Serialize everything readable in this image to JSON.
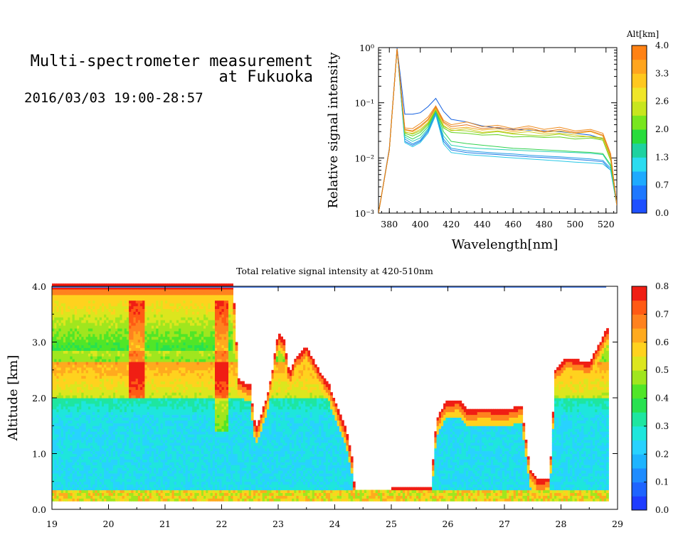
{
  "header": {
    "title_line1": "Multi-spectrometer measurement",
    "title_line2": "at Fukuoka",
    "date_range": "2016/03/03 19:00-28:57"
  },
  "chart_data": [
    {
      "type": "line",
      "xlabel": "Wavelength[nm]",
      "ylabel": "Relative signal intensity",
      "y_scale": "log",
      "xlim": [
        373,
        527
      ],
      "ylim": [
        0.001,
        1
      ],
      "x_ticks": [
        "380",
        "400",
        "420",
        "440",
        "460",
        "480",
        "500",
        "520"
      ],
      "y_ticks": [
        "10⁻³",
        "10⁻²",
        "10⁻¹",
        "10⁰"
      ],
      "x": [
        373,
        380,
        385,
        390,
        395,
        400,
        405,
        410,
        415,
        420,
        430,
        440,
        450,
        460,
        470,
        480,
        490,
        500,
        510,
        518,
        523,
        527
      ],
      "colorbar": {
        "title": "Alt[km]",
        "tick_labels": [
          "0.0",
          "0.7",
          "1.3",
          "2.0",
          "2.6",
          "3.3",
          "4.0"
        ],
        "colors": [
          "#1e50ff",
          "#1e78ff",
          "#1eaaff",
          "#2adcf0",
          "#1ed2a0",
          "#28dc3c",
          "#78e61e",
          "#c8e61e",
          "#f0e628",
          "#ffc81e",
          "#ffa51e",
          "#ff8214"
        ]
      },
      "series": [
        {
          "color": "#1460e0",
          "values": [
            0.001,
            0.015,
            1.0,
            0.062,
            0.062,
            0.066,
            0.085,
            0.12,
            0.07,
            0.05,
            0.045,
            0.038,
            0.035,
            0.033,
            0.032,
            0.031,
            0.03,
            0.028,
            0.026,
            0.022,
            0.01,
            0.0015
          ]
        },
        {
          "color": "#1e78e6",
          "values": [
            0.001,
            0.014,
            0.95,
            0.02,
            0.017,
            0.02,
            0.03,
            0.065,
            0.02,
            0.014,
            0.0125,
            0.012,
            0.0115,
            0.011,
            0.0105,
            0.0102,
            0.0099,
            0.0094,
            0.009,
            0.0085,
            0.006,
            0.0014
          ]
        },
        {
          "color": "#1e9be6",
          "values": [
            0.001,
            0.014,
            0.95,
            0.022,
            0.018,
            0.021,
            0.032,
            0.068,
            0.022,
            0.015,
            0.0135,
            0.0128,
            0.0122,
            0.0118,
            0.0112,
            0.0108,
            0.0105,
            0.01,
            0.0096,
            0.009,
            0.0065,
            0.0014
          ]
        },
        {
          "color": "#28c8e6",
          "values": [
            0.001,
            0.014,
            0.95,
            0.019,
            0.016,
            0.019,
            0.028,
            0.06,
            0.018,
            0.0125,
            0.0115,
            0.011,
            0.0105,
            0.01,
            0.0096,
            0.0092,
            0.0088,
            0.0084,
            0.0081,
            0.0078,
            0.006,
            0.0014
          ]
        },
        {
          "color": "#28d2b4",
          "values": [
            0.001,
            0.014,
            0.95,
            0.024,
            0.02,
            0.023,
            0.034,
            0.07,
            0.025,
            0.017,
            0.0155,
            0.0148,
            0.0143,
            0.0139,
            0.0135,
            0.0131,
            0.0128,
            0.0125,
            0.0121,
            0.0115,
            0.007,
            0.0014
          ]
        },
        {
          "color": "#32d250",
          "values": [
            0.001,
            0.014,
            0.95,
            0.026,
            0.022,
            0.026,
            0.037,
            0.072,
            0.03,
            0.02,
            0.0182,
            0.017,
            0.016,
            0.015,
            0.0145,
            0.014,
            0.0136,
            0.013,
            0.0126,
            0.012,
            0.0075,
            0.0014
          ]
        },
        {
          "color": "#64d21e",
          "values": [
            0.001,
            0.014,
            0.95,
            0.028,
            0.025,
            0.029,
            0.04,
            0.074,
            0.035,
            0.029,
            0.028,
            0.026,
            0.0265,
            0.024,
            0.0245,
            0.0235,
            0.024,
            0.022,
            0.023,
            0.021,
            0.009,
            0.0014
          ]
        },
        {
          "color": "#a0d21e",
          "values": [
            0.001,
            0.014,
            0.95,
            0.03,
            0.027,
            0.031,
            0.042,
            0.076,
            0.037,
            0.032,
            0.031,
            0.028,
            0.03,
            0.027,
            0.026,
            0.025,
            0.027,
            0.024,
            0.0245,
            0.023,
            0.01,
            0.0014
          ]
        },
        {
          "color": "#d2c81e",
          "values": [
            0.001,
            0.014,
            0.95,
            0.029,
            0.028,
            0.033,
            0.044,
            0.078,
            0.039,
            0.031,
            0.034,
            0.029,
            0.031,
            0.028,
            0.03,
            0.027,
            0.028,
            0.026,
            0.024,
            0.022,
            0.0095,
            0.0014
          ]
        },
        {
          "color": "#f0aa1e",
          "values": [
            0.001,
            0.014,
            0.95,
            0.032,
            0.03,
            0.036,
            0.048,
            0.082,
            0.043,
            0.034,
            0.036,
            0.032,
            0.034,
            0.03,
            0.033,
            0.029,
            0.031,
            0.028,
            0.03,
            0.025,
            0.011,
            0.0014
          ]
        },
        {
          "color": "#f08c1e",
          "values": [
            0.001,
            0.014,
            0.95,
            0.035,
            0.034,
            0.042,
            0.055,
            0.088,
            0.048,
            0.04,
            0.045,
            0.037,
            0.039,
            0.034,
            0.038,
            0.033,
            0.036,
            0.031,
            0.033,
            0.028,
            0.012,
            0.0014
          ]
        },
        {
          "color": "#e6781e",
          "values": [
            0.001,
            0.014,
            0.95,
            0.033,
            0.031,
            0.038,
            0.05,
            0.084,
            0.045,
            0.037,
            0.04,
            0.034,
            0.036,
            0.032,
            0.035,
            0.03,
            0.033,
            0.029,
            0.031,
            0.026,
            0.011,
            0.0014
          ]
        }
      ]
    },
    {
      "type": "heatmap",
      "title": "Total relative signal intensity at 420-510nm",
      "ylabel": "Altitude [km]",
      "xlim": [
        19,
        29
      ],
      "ylim": [
        0,
        4
      ],
      "x_ticks": [
        "19",
        "20",
        "21",
        "22",
        "23",
        "24",
        "25",
        "26",
        "27",
        "28",
        "29"
      ],
      "y_ticks": [
        "0.0",
        "1.0",
        "2.0",
        "3.0",
        "4.0"
      ],
      "colorbar": {
        "min": 0,
        "max": 0.8,
        "tick_labels": [
          "0.0",
          "0.1",
          "0.2",
          "0.3",
          "0.4",
          "0.5",
          "0.6",
          "0.7",
          "0.8"
        ],
        "colors": [
          "#1e3cff",
          "#1e64ff",
          "#1e8cff",
          "#1eb4ff",
          "#28d2ff",
          "#1ee6dc",
          "#1ee6a0",
          "#28e150",
          "#50e628",
          "#a0e61e",
          "#dce61e",
          "#ffd21e",
          "#ffaa1e",
          "#ff821e",
          "#ff5a14",
          "#f01e14"
        ]
      },
      "cloud_top_km": [
        [
          19.0,
          4.0
        ],
        [
          22.2,
          4.0
        ],
        [
          22.3,
          2.3
        ],
        [
          22.5,
          2.2
        ],
        [
          22.6,
          1.4
        ],
        [
          22.8,
          2.0
        ],
        [
          22.9,
          2.5
        ],
        [
          23.0,
          3.15
        ],
        [
          23.1,
          3.0
        ],
        [
          23.2,
          2.4
        ],
        [
          23.3,
          2.7
        ],
        [
          23.5,
          2.9
        ],
        [
          23.7,
          2.5
        ],
        [
          23.9,
          2.2
        ],
        [
          24.05,
          1.8
        ],
        [
          24.2,
          1.4
        ],
        [
          24.3,
          0.9
        ],
        [
          24.35,
          0.35
        ],
        [
          25.0,
          0.35
        ],
        [
          25.7,
          0.4
        ],
        [
          25.8,
          1.6
        ],
        [
          25.95,
          1.9
        ],
        [
          26.2,
          1.95
        ],
        [
          26.35,
          1.75
        ],
        [
          26.6,
          1.8
        ],
        [
          27.0,
          1.75
        ],
        [
          27.3,
          1.85
        ],
        [
          27.45,
          0.7
        ],
        [
          27.6,
          0.5
        ],
        [
          27.8,
          0.55
        ],
        [
          27.9,
          2.5
        ],
        [
          28.1,
          2.7
        ],
        [
          28.5,
          2.6
        ],
        [
          28.8,
          3.2
        ],
        [
          28.85,
          3.2
        ]
      ]
    }
  ]
}
